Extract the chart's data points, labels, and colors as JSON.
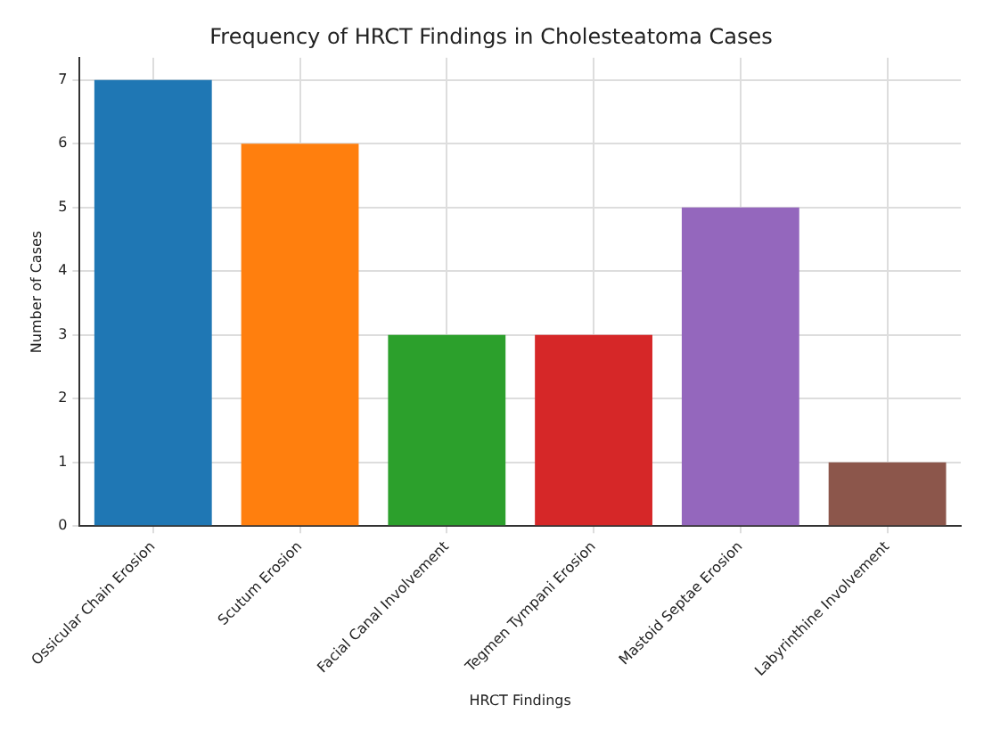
{
  "chart_data": {
    "type": "bar",
    "title": "Frequency of HRCT Findings in Cholesteatoma Cases",
    "xlabel": "HRCT Findings",
    "ylabel": "Number of Cases",
    "categories": [
      "Ossicular Chain Erosion",
      "Scutum Erosion",
      "Facial Canal Involvement",
      "Tegmen Tympani Erosion",
      "Mastoid Septae Erosion",
      "Labyrinthine Involvement"
    ],
    "values": [
      7,
      6,
      3,
      3,
      5,
      1
    ],
    "colors": [
      "#1f77b4",
      "#ff7f0e",
      "#2ca02c",
      "#d62728",
      "#9467bd",
      "#8c564b"
    ],
    "ylim": [
      0,
      7.35
    ],
    "yticks": [
      0,
      1,
      2,
      3,
      4,
      5,
      6,
      7
    ],
    "grid": true
  }
}
